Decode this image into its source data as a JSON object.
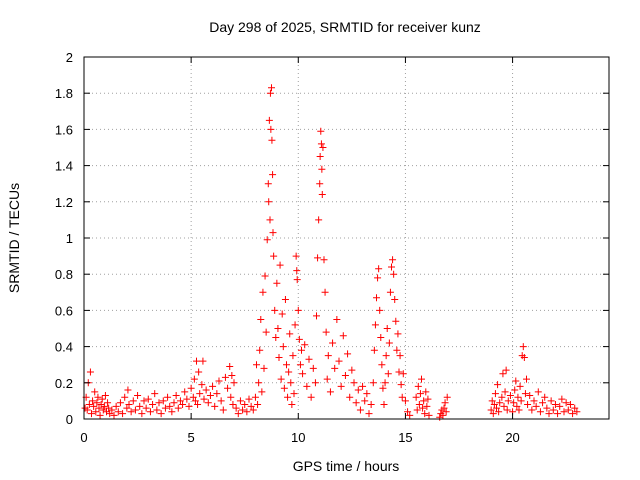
{
  "chart_data": {
    "type": "scatter",
    "title": "Day 298 of 2025, SRMTID for receiver kunz",
    "xlabel": "GPS time / hours",
    "ylabel": "SRMTID / TECUs",
    "xlim": [
      0,
      24.5
    ],
    "ylim": [
      0,
      2
    ],
    "xticks": [
      0,
      5,
      10,
      15,
      20
    ],
    "xtick_labels": [
      "0",
      "5",
      "10",
      "15",
      "20"
    ],
    "yticks": [
      0,
      0.2,
      0.4,
      0.6,
      0.8,
      1,
      1.2,
      1.4,
      1.6,
      1.8,
      2
    ],
    "ytick_labels": [
      "0",
      "0.2",
      "0.4",
      "0.6",
      "0.8",
      "1",
      "1.2",
      "1.4",
      "1.6",
      "1.8",
      "2"
    ],
    "grid": true,
    "marker": "+",
    "series": [
      {
        "name": "SRMTID",
        "color": "#ff0000",
        "points": [
          [
            0.05,
            0.06
          ],
          [
            0.1,
            0.12
          ],
          [
            0.15,
            0.05
          ],
          [
            0.2,
            0.2
          ],
          [
            0.25,
            0.08
          ],
          [
            0.3,
            0.26
          ],
          [
            0.35,
            0.03
          ],
          [
            0.4,
            0.1
          ],
          [
            0.45,
            0.07
          ],
          [
            0.5,
            0.15
          ],
          [
            0.55,
            0.04
          ],
          [
            0.6,
            0.09
          ],
          [
            0.65,
            0.12
          ],
          [
            0.7,
            0.06
          ],
          [
            0.75,
            0.02
          ],
          [
            0.8,
            0.08
          ],
          [
            0.85,
            0.11
          ],
          [
            0.9,
            0.05
          ],
          [
            0.95,
            0.07
          ],
          [
            1.0,
            0.13
          ],
          [
            1.05,
            0.04
          ],
          [
            1.1,
            0.09
          ],
          [
            1.15,
            0.06
          ],
          [
            1.2,
            0.03
          ],
          [
            1.3,
            0.05
          ],
          [
            1.4,
            0.02
          ],
          [
            1.5,
            0.07
          ],
          [
            1.6,
            0.04
          ],
          [
            1.7,
            0.09
          ],
          [
            1.8,
            0.03
          ],
          [
            1.9,
            0.12
          ],
          [
            2.0,
            0.06
          ],
          [
            2.05,
            0.16
          ],
          [
            2.1,
            0.08
          ],
          [
            2.2,
            0.04
          ],
          [
            2.3,
            0.1
          ],
          [
            2.4,
            0.05
          ],
          [
            2.5,
            0.13
          ],
          [
            2.6,
            0.07
          ],
          [
            2.7,
            0.03
          ],
          [
            2.8,
            0.1
          ],
          [
            2.9,
            0.06
          ],
          [
            3.0,
            0.11
          ],
          [
            3.1,
            0.04
          ],
          [
            3.2,
            0.08
          ],
          [
            3.3,
            0.14
          ],
          [
            3.4,
            0.05
          ],
          [
            3.5,
            0.09
          ],
          [
            3.6,
            0.03
          ],
          [
            3.7,
            0.1
          ],
          [
            3.8,
            0.06
          ],
          [
            3.9,
            0.12
          ],
          [
            4.0,
            0.07
          ],
          [
            4.1,
            0.04
          ],
          [
            4.2,
            0.09
          ],
          [
            4.3,
            0.13
          ],
          [
            4.4,
            0.06
          ],
          [
            4.5,
            0.1
          ],
          [
            4.6,
            0.08
          ],
          [
            4.7,
            0.15
          ],
          [
            4.8,
            0.11
          ],
          [
            4.9,
            0.07
          ],
          [
            5.0,
            0.17
          ],
          [
            5.1,
            0.12
          ],
          [
            5.15,
            0.22
          ],
          [
            5.2,
            0.1
          ],
          [
            5.25,
            0.32
          ],
          [
            5.3,
            0.08
          ],
          [
            5.35,
            0.26
          ],
          [
            5.4,
            0.14
          ],
          [
            5.5,
            0.19
          ],
          [
            5.55,
            0.32
          ],
          [
            5.6,
            0.11
          ],
          [
            5.7,
            0.16
          ],
          [
            5.8,
            0.09
          ],
          [
            5.9,
            0.13
          ],
          [
            6.0,
            0.18
          ],
          [
            6.1,
            0.07
          ],
          [
            6.2,
            0.14
          ],
          [
            6.3,
            0.21
          ],
          [
            6.4,
            0.1
          ],
          [
            6.5,
            0.05
          ],
          [
            6.6,
            0.23
          ],
          [
            6.7,
            0.17
          ],
          [
            6.8,
            0.29
          ],
          [
            6.85,
            0.12
          ],
          [
            6.9,
            0.24
          ],
          [
            6.95,
            0.08
          ],
          [
            7.0,
            0.2
          ],
          [
            7.1,
            0.06
          ],
          [
            7.2,
            0.03
          ],
          [
            7.3,
            0.1
          ],
          [
            7.4,
            0.05
          ],
          [
            7.5,
            0.08
          ],
          [
            7.6,
            0.04
          ],
          [
            7.7,
            0.11
          ],
          [
            7.8,
            0.07
          ],
          [
            7.9,
            0.05
          ],
          [
            8.0,
            0.12
          ],
          [
            8.05,
            0.3
          ],
          [
            8.1,
            0.08
          ],
          [
            8.15,
            0.2
          ],
          [
            8.2,
            0.38
          ],
          [
            8.25,
            0.55
          ],
          [
            8.3,
            0.15
          ],
          [
            8.35,
            0.7
          ],
          [
            8.4,
            0.28
          ],
          [
            8.45,
            0.79
          ],
          [
            8.5,
            0.48
          ],
          [
            8.55,
            0.99
          ],
          [
            8.6,
            1.3
          ],
          [
            8.62,
            1.2
          ],
          [
            8.65,
            1.65
          ],
          [
            8.68,
            1.1
          ],
          [
            8.7,
            1.8
          ],
          [
            8.72,
            1.6
          ],
          [
            8.75,
            1.83
          ],
          [
            8.77,
            1.54
          ],
          [
            8.8,
            1.35
          ],
          [
            8.82,
            1.03
          ],
          [
            8.85,
            0.9
          ],
          [
            8.9,
            0.6
          ],
          [
            8.95,
            0.45
          ],
          [
            9.0,
            0.75
          ],
          [
            9.05,
            0.5
          ],
          [
            9.1,
            0.34
          ],
          [
            9.15,
            0.85
          ],
          [
            9.2,
            0.22
          ],
          [
            9.25,
            0.58
          ],
          [
            9.3,
            0.4
          ],
          [
            9.35,
            0.17
          ],
          [
            9.4,
            0.66
          ],
          [
            9.45,
            0.3
          ],
          [
            9.5,
            0.12
          ],
          [
            9.55,
            0.26
          ],
          [
            9.6,
            0.47
          ],
          [
            9.65,
            0.2
          ],
          [
            9.7,
            0.08
          ],
          [
            9.75,
            0.35
          ],
          [
            9.8,
            0.14
          ],
          [
            9.85,
            0.52
          ],
          [
            9.9,
            0.9
          ],
          [
            9.93,
            0.82
          ],
          [
            9.95,
            0.77
          ],
          [
            10.0,
            0.6
          ],
          [
            10.05,
            0.44
          ],
          [
            10.1,
            0.3
          ],
          [
            10.15,
            0.38
          ],
          [
            10.2,
            0.25
          ],
          [
            10.3,
            0.41
          ],
          [
            10.4,
            0.18
          ],
          [
            10.5,
            0.33
          ],
          [
            10.6,
            0.12
          ],
          [
            10.7,
            0.28
          ],
          [
            10.8,
            0.2
          ],
          [
            10.85,
            0.57
          ],
          [
            10.9,
            0.89
          ],
          [
            10.95,
            1.1
          ],
          [
            11.0,
            1.3
          ],
          [
            11.02,
            1.45
          ],
          [
            11.05,
            1.59
          ],
          [
            11.08,
            1.52
          ],
          [
            11.1,
            1.38
          ],
          [
            11.12,
            1.24
          ],
          [
            11.15,
            1.5
          ],
          [
            11.2,
            0.88
          ],
          [
            11.25,
            0.7
          ],
          [
            11.3,
            0.48
          ],
          [
            11.35,
            0.22
          ],
          [
            11.4,
            0.35
          ],
          [
            11.5,
            0.15
          ],
          [
            11.6,
            0.42
          ],
          [
            11.7,
            0.28
          ],
          [
            11.8,
            0.55
          ],
          [
            11.9,
            0.32
          ],
          [
            12.0,
            0.18
          ],
          [
            12.1,
            0.46
          ],
          [
            12.2,
            0.24
          ],
          [
            12.3,
            0.36
          ],
          [
            12.4,
            0.12
          ],
          [
            12.5,
            0.27
          ],
          [
            12.6,
            0.2
          ],
          [
            12.7,
            0.09
          ],
          [
            12.8,
            0.16
          ],
          [
            12.9,
            0.05
          ],
          [
            13.0,
            0.18
          ],
          [
            13.1,
            0.1
          ],
          [
            13.2,
            0.14
          ],
          [
            13.3,
            0.03
          ],
          [
            13.4,
            0.08
          ],
          [
            13.5,
            0.2
          ],
          [
            13.55,
            0.38
          ],
          [
            13.6,
            0.52
          ],
          [
            13.65,
            0.67
          ],
          [
            13.7,
            0.78
          ],
          [
            13.75,
            0.83
          ],
          [
            13.8,
            0.6
          ],
          [
            13.85,
            0.45
          ],
          [
            13.9,
            0.3
          ],
          [
            13.95,
            0.17
          ],
          [
            14.0,
            0.08
          ],
          [
            14.05,
            0.2
          ],
          [
            14.1,
            0.35
          ],
          [
            14.15,
            0.5
          ],
          [
            14.2,
            0.25
          ],
          [
            14.25,
            0.42
          ],
          [
            14.3,
            0.7
          ],
          [
            14.35,
            0.84
          ],
          [
            14.4,
            0.88
          ],
          [
            14.45,
            0.8
          ],
          [
            14.5,
            0.66
          ],
          [
            14.55,
            0.54
          ],
          [
            14.6,
            0.38
          ],
          [
            14.65,
            0.47
          ],
          [
            14.7,
            0.26
          ],
          [
            14.75,
            0.35
          ],
          [
            14.8,
            0.19
          ],
          [
            14.85,
            0.12
          ],
          [
            14.9,
            0.25
          ],
          [
            15.0,
            0.1
          ],
          [
            15.1,
            0.04
          ],
          [
            15.2,
            0.02
          ],
          [
            15.5,
            0.12
          ],
          [
            15.55,
            0.05
          ],
          [
            15.6,
            0.18
          ],
          [
            15.65,
            0.08
          ],
          [
            15.7,
            0.14
          ],
          [
            15.75,
            0.22
          ],
          [
            15.8,
            0.06
          ],
          [
            15.85,
            0.1
          ],
          [
            15.9,
            0.03
          ],
          [
            15.95,
            0.15
          ],
          [
            16.0,
            0.07
          ],
          [
            16.05,
            0.11
          ],
          [
            16.1,
            0.02
          ],
          [
            16.6,
            0.01
          ],
          [
            16.65,
            0.03
          ],
          [
            16.7,
            0.05
          ],
          [
            16.75,
            0.02
          ],
          [
            16.8,
            0.06
          ],
          [
            16.85,
            0.09
          ],
          [
            16.9,
            0.04
          ],
          [
            16.95,
            0.12
          ],
          [
            19.0,
            0.05
          ],
          [
            19.05,
            0.1
          ],
          [
            19.1,
            0.03
          ],
          [
            19.15,
            0.08
          ],
          [
            19.2,
            0.14
          ],
          [
            19.25,
            0.06
          ],
          [
            19.3,
            0.19
          ],
          [
            19.35,
            0.04
          ],
          [
            19.4,
            0.09
          ],
          [
            19.5,
            0.12
          ],
          [
            19.55,
            0.25
          ],
          [
            19.6,
            0.07
          ],
          [
            19.65,
            0.15
          ],
          [
            19.7,
            0.27
          ],
          [
            19.75,
            0.05
          ],
          [
            19.8,
            0.1
          ],
          [
            19.9,
            0.13
          ],
          [
            20.0,
            0.04
          ],
          [
            20.05,
            0.09
          ],
          [
            20.1,
            0.16
          ],
          [
            20.15,
            0.21
          ],
          [
            20.2,
            0.07
          ],
          [
            20.25,
            0.12
          ],
          [
            20.3,
            0.05
          ],
          [
            20.35,
            0.18
          ],
          [
            20.4,
            0.1
          ],
          [
            20.45,
            0.35
          ],
          [
            20.5,
            0.4
          ],
          [
            20.55,
            0.34
          ],
          [
            20.6,
            0.14
          ],
          [
            20.65,
            0.22
          ],
          [
            20.7,
            0.08
          ],
          [
            20.8,
            0.13
          ],
          [
            20.9,
            0.05
          ],
          [
            21.0,
            0.1
          ],
          [
            21.1,
            0.07
          ],
          [
            21.2,
            0.15
          ],
          [
            21.3,
            0.04
          ],
          [
            21.4,
            0.09
          ],
          [
            21.5,
            0.12
          ],
          [
            21.6,
            0.06
          ],
          [
            21.7,
            0.03
          ],
          [
            21.8,
            0.1
          ],
          [
            21.9,
            0.05
          ],
          [
            22.0,
            0.08
          ],
          [
            22.1,
            0.03
          ],
          [
            22.2,
            0.07
          ],
          [
            22.3,
            0.11
          ],
          [
            22.4,
            0.04
          ],
          [
            22.5,
            0.09
          ],
          [
            22.6,
            0.05
          ],
          [
            22.7,
            0.08
          ],
          [
            22.8,
            0.03
          ],
          [
            22.9,
            0.06
          ],
          [
            23.0,
            0.04
          ]
        ]
      }
    ]
  }
}
